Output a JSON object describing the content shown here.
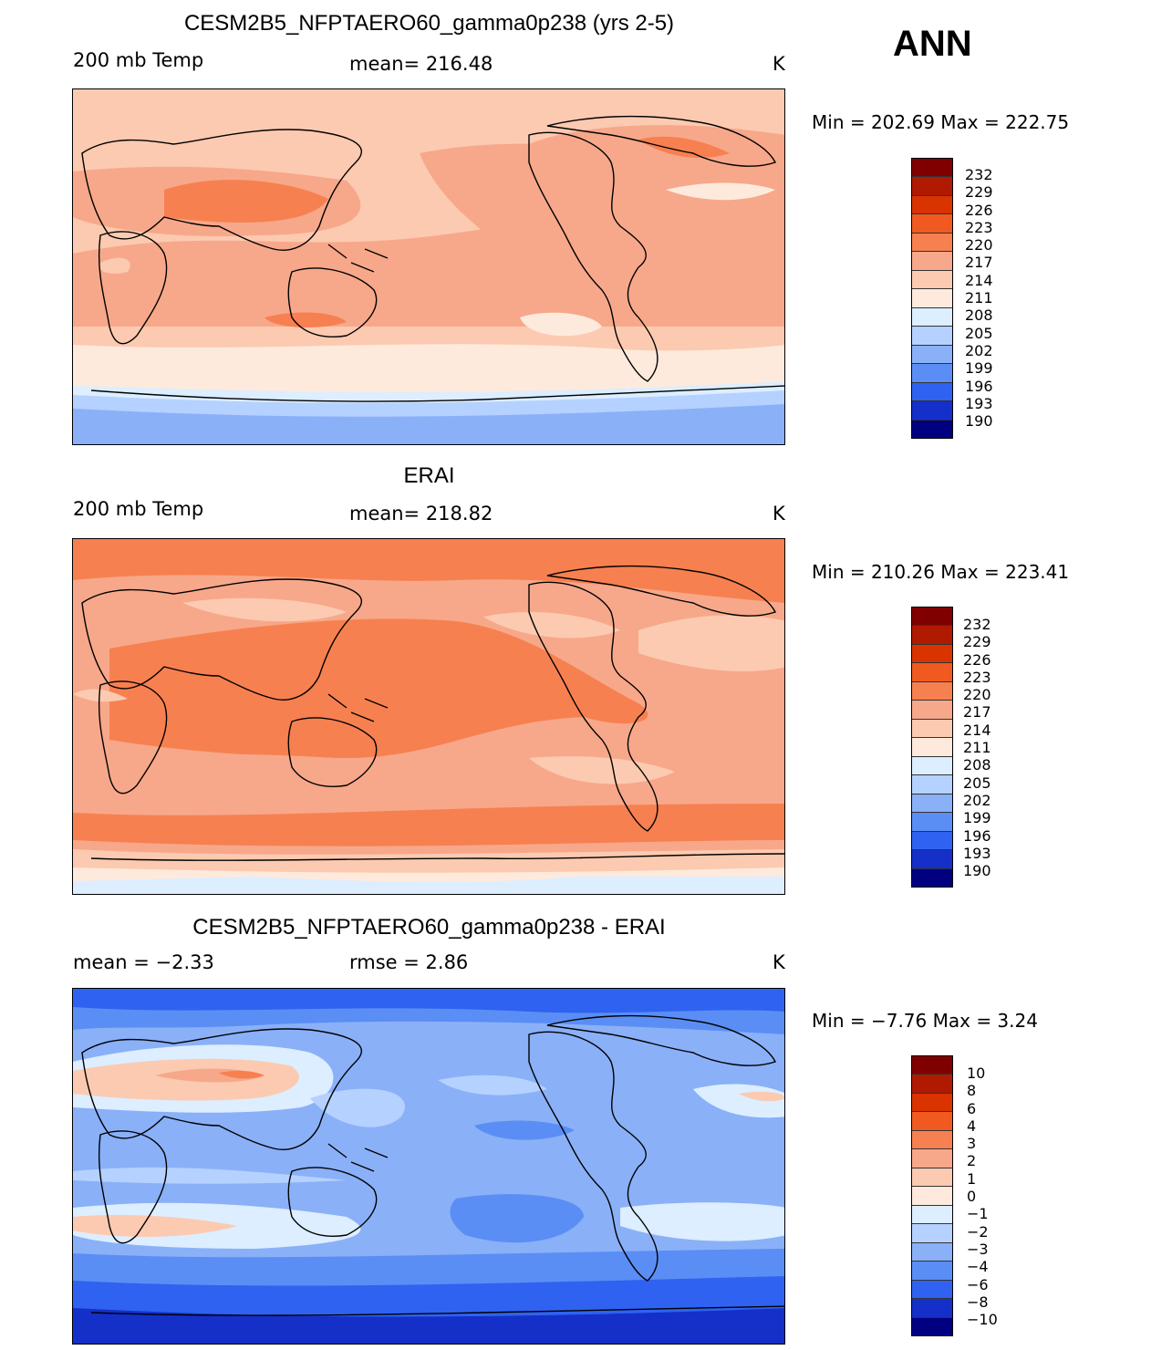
{
  "season": "ANN",
  "panels": [
    {
      "title": "CESM2B5_NFPTAERO60_gamma0p238 (yrs 2-5)",
      "left_label": "200 mb Temp",
      "center_label": "mean= 216.48",
      "units": "K",
      "minmax": "Min  =  202.69  Max  =  222.75",
      "colorbar_labels": [
        "232",
        "229",
        "226",
        "223",
        "220",
        "217",
        "214",
        "211",
        "208",
        "205",
        "202",
        "199",
        "196",
        "193",
        "190"
      ]
    },
    {
      "title": "ERAI",
      "left_label": "200 mb Temp",
      "center_label": "mean= 218.82",
      "units": "K",
      "minmax": "Min  =  210.26  Max  =  223.41",
      "colorbar_labels": [
        "232",
        "229",
        "226",
        "223",
        "220",
        "217",
        "214",
        "211",
        "208",
        "205",
        "202",
        "199",
        "196",
        "193",
        "190"
      ]
    },
    {
      "title": "CESM2B5_NFPTAERO60_gamma0p238 - ERAI",
      "left_label": "mean  =   −2.33",
      "center_label": "rmse  =    2.86",
      "units": "K",
      "minmax": "Min  =   −7.76  Max  =     3.24",
      "colorbar_labels": [
        "10",
        "8",
        "6",
        "4",
        "3",
        "2",
        "1",
        "0",
        "−1",
        "−2",
        "−3",
        "−4",
        "−6",
        "−8",
        "−10"
      ]
    }
  ],
  "colors": {
    "temp_scale": [
      "#800000",
      "#b01a00",
      "#d93300",
      "#f05a20",
      "#f78050",
      "#f7a88a",
      "#fccab0",
      "#feeadc",
      "#dceeff",
      "#b5d1ff",
      "#8ab0f8",
      "#5a8ef5",
      "#2f62f0",
      "#1430c8",
      "#000080"
    ],
    "diff_scale": [
      "#800000",
      "#b01a00",
      "#d93300",
      "#f05a20",
      "#f78050",
      "#f7a88a",
      "#fccab0",
      "#feeadc",
      "#dceeff",
      "#b5d1ff",
      "#8ab0f8",
      "#5a8ef5",
      "#2f62f0",
      "#1430c8",
      "#000080"
    ]
  }
}
